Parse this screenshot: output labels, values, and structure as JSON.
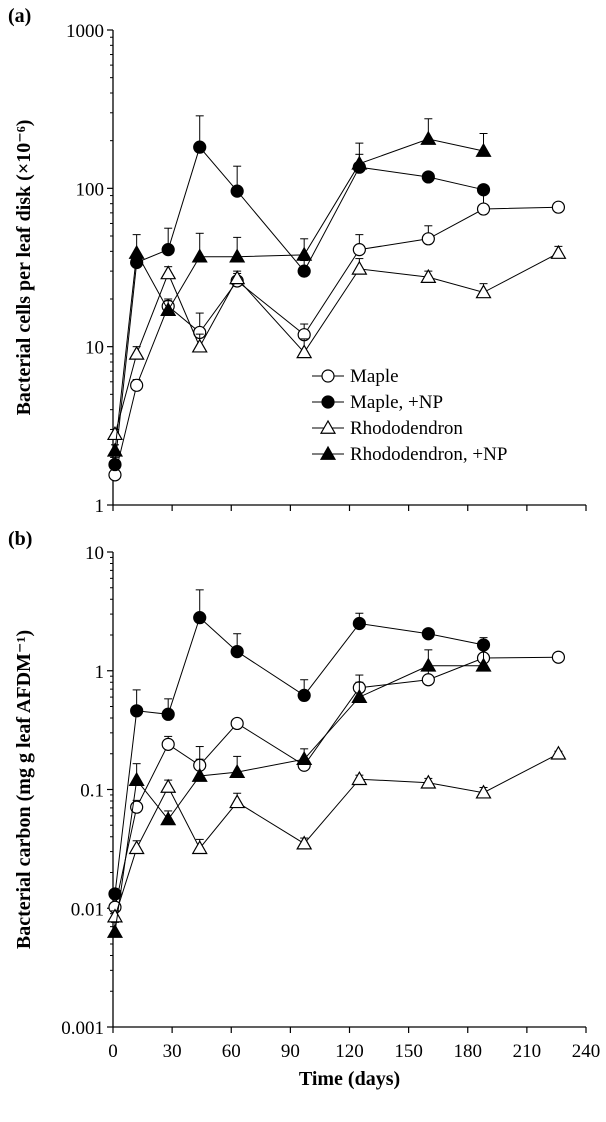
{
  "chart_data": [
    {
      "type": "line",
      "panel_label": "(a)",
      "ylabel": "Bacterial cells per leaf disk (×10⁻⁶)",
      "xlabel": "",
      "yscale": "log",
      "ylim": [
        1,
        1000
      ],
      "yticks": [
        1,
        10,
        100,
        1000
      ],
      "ytick_labels": [
        "1",
        "10",
        "100",
        "1000"
      ],
      "xlim": [
        0,
        240
      ],
      "xticks": [
        0,
        30,
        60,
        90,
        120,
        150,
        180,
        210,
        240
      ],
      "xtick_labels": [],
      "legend": {
        "position": "inside-right",
        "entries": [
          "Maple",
          "Maple, +NP",
          "Rhododendron",
          "Rhododendron, +NP"
        ]
      },
      "series": [
        {
          "name": "Maple",
          "marker": "circle-open",
          "x": [
            1,
            12,
            28,
            44,
            63,
            97,
            125,
            160,
            188,
            226
          ],
          "y": [
            1.55,
            5.7,
            18,
            12.3,
            26,
            11.9,
            41,
            48,
            74,
            76
          ],
          "err": [
            0.1,
            0.5,
            2,
            4,
            3,
            2,
            10,
            10,
            18,
            0
          ]
        },
        {
          "name": "Maple, +NP",
          "marker": "circle-filled",
          "x": [
            1,
            12,
            28,
            44,
            63,
            97,
            125,
            160,
            188
          ],
          "y": [
            1.8,
            34,
            41,
            182,
            96,
            30,
            136,
            118,
            98
          ],
          "err": [
            0.2,
            5,
            15,
            105,
            42,
            5,
            28,
            0,
            5
          ]
        },
        {
          "name": "Rhododendron",
          "marker": "triangle-open",
          "x": [
            1,
            12,
            28,
            44,
            63,
            97,
            125,
            160,
            188,
            226
          ],
          "y": [
            2.8,
            9,
            29,
            10,
            27,
            9.2,
            31,
            27.5,
            22,
            39
          ],
          "err": [
            0.2,
            1,
            3,
            2,
            3,
            2,
            5,
            2.5,
            3,
            4
          ]
        },
        {
          "name": "Rhododendron, +NP",
          "marker": "triangle-filled",
          "x": [
            1,
            12,
            28,
            44,
            63,
            97,
            125,
            160,
            188
          ],
          "y": [
            2.2,
            39,
            17,
            37,
            37,
            38,
            143,
            205,
            172
          ],
          "err": [
            0.2,
            12,
            2.5,
            15,
            12,
            10,
            50,
            70,
            50
          ]
        }
      ]
    },
    {
      "type": "line",
      "panel_label": "(b)",
      "ylabel": "Bacterial carbon (mg g leaf AFDM⁻¹)",
      "xlabel": "Time (days)",
      "yscale": "log",
      "ylim": [
        0.001,
        10
      ],
      "yticks": [
        0.001,
        0.01,
        0.1,
        1,
        10
      ],
      "ytick_labels": [
        "0.001",
        "0.01",
        "0.1",
        "1",
        "10"
      ],
      "xlim": [
        0,
        240
      ],
      "xticks": [
        0,
        30,
        60,
        90,
        120,
        150,
        180,
        210,
        240
      ],
      "xtick_labels": [
        "0",
        "30",
        "60",
        "90",
        "120",
        "150",
        "180",
        "210",
        "240"
      ],
      "series": [
        {
          "name": "Maple",
          "marker": "circle-open",
          "x": [
            1,
            12,
            28,
            44,
            63,
            97,
            125,
            160,
            188,
            226
          ],
          "y": [
            0.0102,
            0.071,
            0.24,
            0.16,
            0.36,
            0.16,
            0.72,
            0.84,
            1.28,
            1.3
          ],
          "err": [
            0.001,
            0.01,
            0.04,
            0.07,
            0.03,
            0.02,
            0.2,
            0.2,
            0.25,
            0
          ]
        },
        {
          "name": "Maple, +NP",
          "marker": "circle-filled",
          "x": [
            1,
            12,
            28,
            44,
            63,
            97,
            125,
            160,
            188
          ],
          "y": [
            0.0132,
            0.46,
            0.43,
            2.8,
            1.45,
            0.62,
            2.5,
            2.05,
            1.65
          ],
          "err": [
            0.001,
            0.23,
            0.15,
            2.0,
            0.6,
            0.22,
            0.55,
            0.1,
            0.25
          ]
        },
        {
          "name": "Rhododendron",
          "marker": "triangle-open",
          "x": [
            1,
            12,
            28,
            44,
            63,
            97,
            125,
            160,
            188,
            226
          ],
          "y": [
            0.0085,
            0.032,
            0.105,
            0.032,
            0.078,
            0.035,
            0.122,
            0.114,
            0.094,
            0.2
          ],
          "err": [
            0.001,
            0.005,
            0.015,
            0.006,
            0.015,
            0.004,
            0.01,
            0.01,
            0.01,
            0.01
          ]
        },
        {
          "name": "Rhododendron, +NP",
          "marker": "triangle-filled",
          "x": [
            1,
            12,
            28,
            44,
            63,
            97,
            125,
            160,
            188
          ],
          "y": [
            0.0063,
            0.12,
            0.056,
            0.13,
            0.14,
            0.18,
            0.6,
            1.1,
            1.1
          ],
          "err": [
            0.0013,
            0.045,
            0.01,
            0.05,
            0.05,
            0.04,
            0.2,
            0.4,
            0.45
          ]
        }
      ]
    }
  ]
}
